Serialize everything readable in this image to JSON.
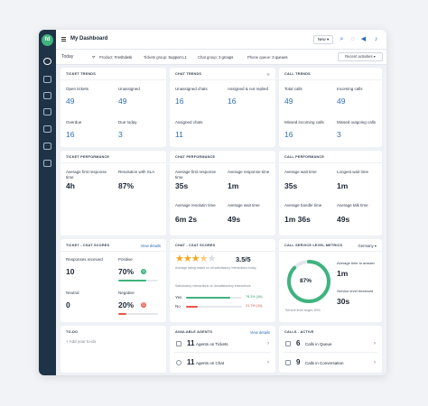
{
  "app": {
    "logo_text": "fd",
    "title": "My Dashboard",
    "new_label": "New ▾",
    "avatar": "JD"
  },
  "filters": {
    "today": "Today",
    "product_label": "Product:",
    "product": "Freshdesk",
    "tickets_group_label": "Tickets group:",
    "tickets_group": "Support L1",
    "chat_group_label": "Chat group:",
    "chat_group": "2 groups",
    "phone_queue_label": "Phone queue:",
    "phone_queue": "3 queues",
    "recent": "Recent activities ▾"
  },
  "ticket_trends": {
    "title": "TICKET TRENDS",
    "items": [
      {
        "label": "Open tickets",
        "value": "49"
      },
      {
        "label": "Unassigned",
        "value": "49"
      },
      {
        "label": "Overdue",
        "value": "16"
      },
      {
        "label": "Due today",
        "value": "3"
      }
    ]
  },
  "chat_trends": {
    "title": "CHAT TRENDS",
    "items": [
      {
        "label": "Unassigned chats",
        "value": "16"
      },
      {
        "label": "Assigned & not replied",
        "value": "16"
      },
      {
        "label": "Assigned chats",
        "value": "11"
      }
    ]
  },
  "call_trends": {
    "title": "CALL TRENDS",
    "items": [
      {
        "label": "Total calls",
        "value": "49"
      },
      {
        "label": "Incoming calls",
        "value": "49"
      },
      {
        "label": "Missed incoming calls",
        "value": "16"
      },
      {
        "label": "Missed outgoing calls",
        "value": "3"
      }
    ]
  },
  "ticket_perf": {
    "title": "TICKET PERFORMANCE",
    "items": [
      {
        "label": "Average first response time",
        "value": "4h"
      },
      {
        "label": "Resolution with SLA",
        "value": "87%"
      }
    ]
  },
  "chat_perf": {
    "title": "CHAT PERFORMANCE",
    "items": [
      {
        "label": "Average first response time",
        "value": "35s"
      },
      {
        "label": "Average response time",
        "value": "1m"
      },
      {
        "label": "Average resolutin time",
        "value": "6m 2s"
      },
      {
        "label": "Average wait time",
        "value": "49s"
      }
    ]
  },
  "call_perf": {
    "title": "CALL PERFORMANCE",
    "items": [
      {
        "label": "Average wait time",
        "value": "35s"
      },
      {
        "label": "Longest wait time",
        "value": "1m"
      },
      {
        "label": "Average handle time",
        "value": "1m 36s"
      },
      {
        "label": "Average talk time",
        "value": "49s"
      }
    ]
  },
  "ticket_csat": {
    "title": "TICKET - CSAT SCORES",
    "link": "View details",
    "responses_label": "Responses received",
    "responses": "10",
    "positive_label": "Positive",
    "positive": "70%",
    "positive_fraction": 0.7,
    "neutral_label": "Neutral",
    "neutral": "0",
    "negative_label": "Negative",
    "negative": "20%",
    "negative_fraction": 0.2,
    "colors": {
      "positive": "#3fb37f",
      "negative": "#e4574b"
    }
  },
  "chat_csat": {
    "title": "CHAT - CSAT SCORES",
    "rating": "3.5/5",
    "rating_value": 3.5,
    "rating_note": "Average rating based on all satisfactory interactions today",
    "split_note": "Satisfactory interactions vs Unsatisfactory interactions",
    "yes_label": "Yes",
    "yes_value": "78.3% (36)",
    "yes_fraction": 0.783,
    "no_label": "No",
    "no_value": "21.7% (10)",
    "no_fraction": 0.217
  },
  "sla": {
    "title": "CALL SERVICE LEVEL METRICS",
    "region": "Germany ▾",
    "percent": "87%",
    "percent_fraction": 0.87,
    "caption": "Service level target: 90%",
    "avg_answer_label": "Average time to answer",
    "avg_answer": "1m",
    "threshold_label": "Service level threshold",
    "threshold": "30s"
  },
  "todo": {
    "title": "TO-DO",
    "add": "Add your to-do"
  },
  "agents": {
    "title": "AVAILABLE AGENTS",
    "link": "View details",
    "rows": [
      {
        "num": "11",
        "text": "Agents on Tickets"
      },
      {
        "num": "11",
        "text": "Agents on Chat"
      }
    ]
  },
  "calls_active": {
    "title": "CALLS - ACTIVE",
    "rows": [
      {
        "num": "6",
        "text": "Calls in Queue"
      },
      {
        "num": "9",
        "text": "Calls in Conversation"
      }
    ]
  }
}
